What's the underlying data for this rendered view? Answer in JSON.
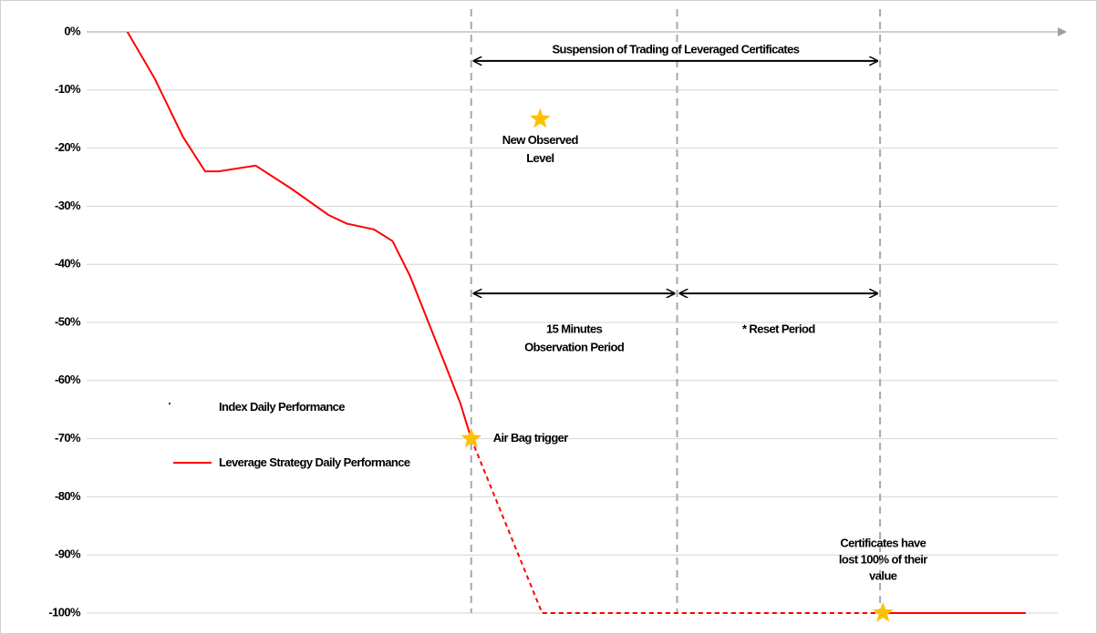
{
  "chart_data": {
    "type": "line",
    "ylim": [
      -100,
      0
    ],
    "yticks": [
      {
        "value": 0,
        "label": "0%"
      },
      {
        "value": -10,
        "label": "-10%"
      },
      {
        "value": -20,
        "label": "-20%"
      },
      {
        "value": -30,
        "label": "-30%"
      },
      {
        "value": -40,
        "label": "-40%"
      },
      {
        "value": -50,
        "label": "-50%"
      },
      {
        "value": -60,
        "label": "-60%"
      },
      {
        "value": -70,
        "label": "-70%"
      },
      {
        "value": -80,
        "label": "-80%"
      },
      {
        "value": -90,
        "label": "-90%"
      },
      {
        "value": -100,
        "label": "-100%"
      }
    ],
    "xlim": [
      0,
      100
    ],
    "grid": true,
    "x": [
      4.2,
      7.0,
      9.9,
      12.2,
      13.6,
      17.4,
      21.1,
      24.9,
      26.8,
      29.6,
      31.5,
      33.3,
      35.2,
      37.1,
      38.5,
      39.6,
      46.9,
      81.7,
      96.7
    ],
    "series": [
      {
        "name": "Leverage Strategy Daily Performance",
        "color": "#ff0000",
        "dashed": false,
        "values": [
          0,
          -8,
          -18,
          -24,
          -24,
          -23,
          -27,
          -31.5,
          -33,
          -34,
          -36,
          -42,
          -50,
          -58,
          -64,
          -70,
          null,
          -100,
          -100
        ]
      },
      {
        "color": "#ff0000",
        "dashed": true,
        "values": [
          null,
          null,
          null,
          null,
          null,
          null,
          null,
          null,
          null,
          null,
          null,
          null,
          null,
          null,
          null,
          -70,
          -100,
          -100,
          null
        ]
      },
      {
        "name": "Index Daily Performance",
        "color": "#000000",
        "dashed": false,
        "values": [
          null,
          null,
          null,
          null,
          null,
          null,
          null,
          null,
          null,
          null,
          null,
          null,
          null,
          null,
          null,
          null,
          null,
          null,
          null
        ]
      }
    ],
    "vlines": [
      39.6,
      60.8,
      81.7
    ],
    "ranges": [
      {
        "from": 39.6,
        "to": 81.7,
        "y": -5,
        "lines": [
          "Suspension of  Trading of Leveraged Certificates"
        ]
      },
      {
        "from": 39.6,
        "to": 60.8,
        "y": -45,
        "lines": [
          "15 Minutes",
          "Observation Period"
        ]
      },
      {
        "from": 60.8,
        "to": 81.7,
        "y": -45,
        "lines": [
          "* Reset Period"
        ]
      }
    ],
    "markers": [
      {
        "x": 46.7,
        "y": -15,
        "lines": [
          "New Observed",
          "Level"
        ]
      },
      {
        "x": 39.6,
        "y": -70,
        "lines": [
          "Air Bag trigger"
        ]
      },
      {
        "x": 82.0,
        "y": -100,
        "lines": [
          "Certificates have",
          "lost 100% of their",
          "value"
        ]
      }
    ]
  }
}
